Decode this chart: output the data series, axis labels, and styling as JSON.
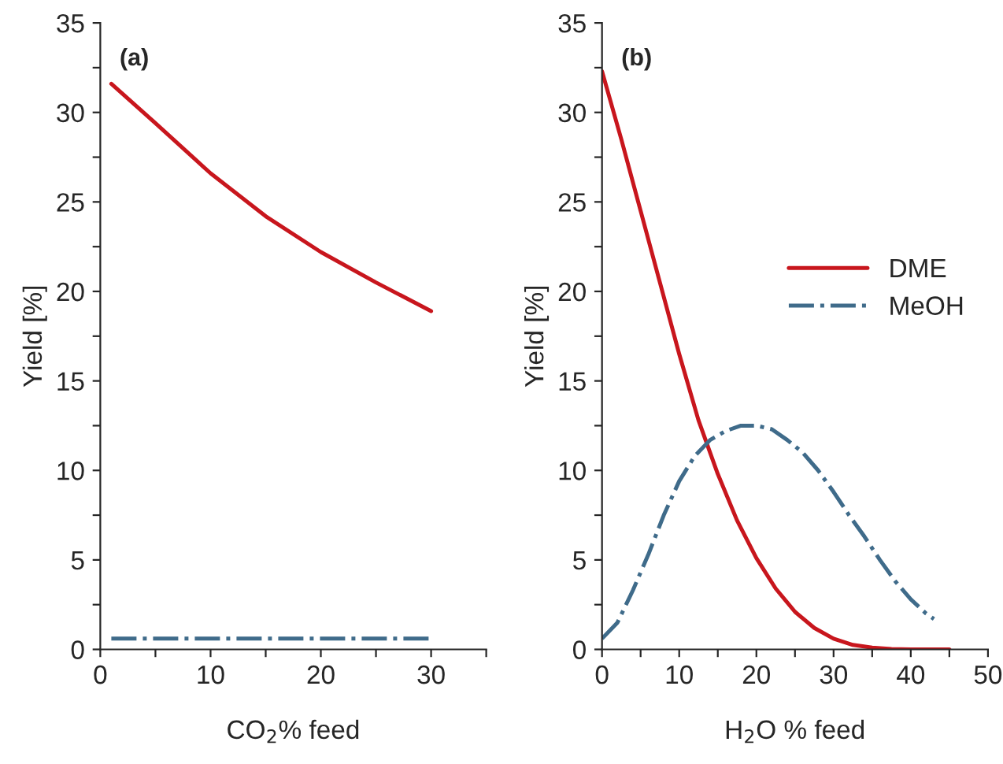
{
  "chart_data": [
    {
      "type": "line",
      "annotations": [
        "(a)"
      ],
      "xlabel": "CO$_{2}$% feed",
      "ylabel": "Yield [%]",
      "xlim": [
        0,
        35
      ],
      "xticks": [
        0,
        {
          "value": 5,
          "label": null
        },
        10,
        {
          "value": 15,
          "label": null
        },
        20,
        {
          "value": 25,
          "label": null
        },
        30,
        {
          "value": 35,
          "label": null
        }
      ],
      "ylim": [
        0,
        35
      ],
      "yticks": [
        0,
        {
          "value": 2.5,
          "label": null
        },
        5,
        {
          "value": 7.5,
          "label": null
        },
        10,
        {
          "value": 12.5,
          "label": null
        },
        15,
        {
          "value": 17.5,
          "label": null
        },
        20,
        {
          "value": 22.5,
          "label": null
        },
        25,
        {
          "value": 27.5,
          "label": null
        },
        30,
        {
          "value": 32.5,
          "label": null
        },
        35
      ],
      "grid": false,
      "legend": false,
      "series": [
        {
          "color": "#c8161d",
          "line_style": "solid",
          "x": [
            1,
            5,
            10,
            15,
            20,
            25,
            30
          ],
          "values": [
            31.6,
            29.4,
            26.6,
            24.2,
            22.2,
            20.5,
            18.9
          ]
        },
        {
          "color": "#3f6b8a",
          "line_style": "dashdot",
          "x": [
            1,
            10,
            20,
            30
          ],
          "values": [
            0.6,
            0.6,
            0.6,
            0.6
          ]
        }
      ]
    },
    {
      "type": "line",
      "annotations": [
        "(b)"
      ],
      "xlabel": "H$_{2}$O % feed",
      "ylabel": "Yield [%]",
      "xlim": [
        0,
        50
      ],
      "xticks": [
        0,
        {
          "value": 5,
          "label": null
        },
        10,
        {
          "value": 15,
          "label": null
        },
        20,
        {
          "value": 25,
          "label": null
        },
        30,
        {
          "value": 35,
          "label": null
        },
        40,
        {
          "value": 45,
          "label": null
        },
        50
      ],
      "ylim": [
        0,
        35
      ],
      "yticks": [
        0,
        {
          "value": 2.5,
          "label": null
        },
        5,
        {
          "value": 7.5,
          "label": null
        },
        10,
        {
          "value": 12.5,
          "label": null
        },
        15,
        {
          "value": 17.5,
          "label": null
        },
        20,
        {
          "value": 22.5,
          "label": null
        },
        25,
        {
          "value": 27.5,
          "label": null
        },
        30,
        {
          "value": 32.5,
          "label": null
        },
        35
      ],
      "grid": false,
      "legend": "right",
      "series": [
        {
          "name": "DME",
          "color": "#c8161d",
          "line_style": "solid",
          "x": [
            0,
            2.5,
            5,
            7.5,
            10,
            12.5,
            15,
            17.5,
            20,
            22.5,
            25,
            27.5,
            30,
            32.5,
            35,
            37.5,
            40,
            45
          ],
          "values": [
            32.3,
            28.5,
            24.5,
            20.5,
            16.5,
            12.8,
            9.8,
            7.2,
            5.1,
            3.4,
            2.1,
            1.2,
            0.6,
            0.25,
            0.1,
            0.02,
            0,
            0
          ]
        },
        {
          "name": "MeOH",
          "color": "#3f6b8a",
          "line_style": "dashdot",
          "x": [
            0,
            2,
            4,
            6,
            8,
            10,
            12,
            14,
            16,
            18,
            20,
            22,
            24,
            26,
            28,
            30,
            32,
            34,
            36,
            38,
            40,
            42,
            43
          ],
          "values": [
            0.6,
            1.5,
            3.3,
            5.3,
            7.5,
            9.4,
            10.8,
            11.7,
            12.2,
            12.5,
            12.5,
            12.3,
            11.7,
            11.0,
            10.0,
            8.8,
            7.5,
            6.3,
            5.0,
            3.8,
            2.8,
            2.0,
            1.7
          ]
        }
      ]
    }
  ]
}
